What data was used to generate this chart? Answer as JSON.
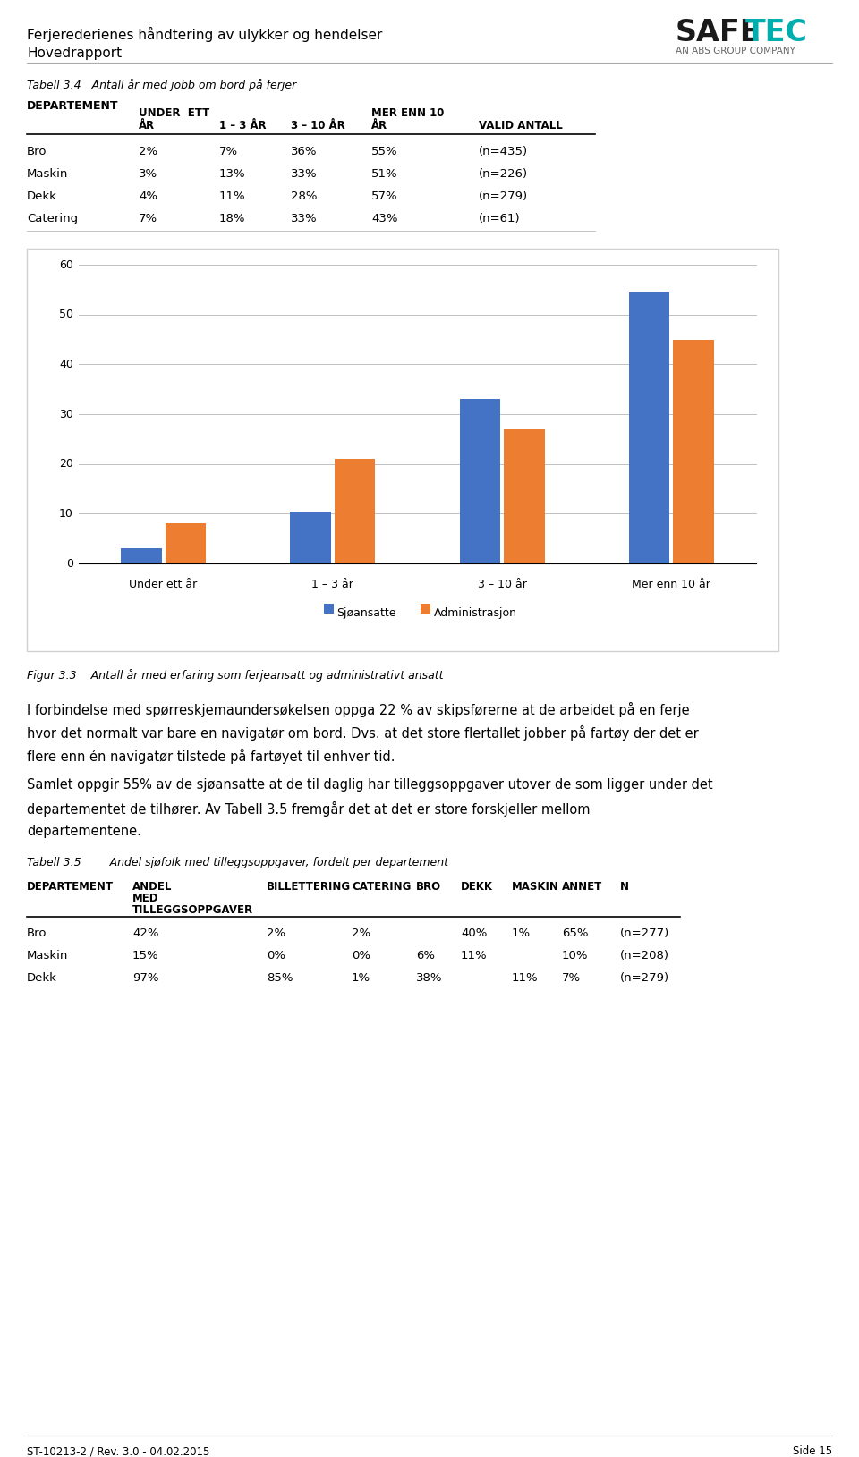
{
  "title_line1": "Ferjerederienes håndtering av ulykker og hendelser",
  "title_line2": "Hovedrapport",
  "safetec_sub": "AN ABS GROUP COMPANY",
  "table_title": "Tabell 3.4   Antall år med jobb om bord på ferjer",
  "table_rows": [
    [
      "Bro",
      "2%",
      "7%",
      "36%",
      "55%",
      "(n=435)"
    ],
    [
      "Maskin",
      "3%",
      "13%",
      "33%",
      "51%",
      "(n=226)"
    ],
    [
      "Dekk",
      "4%",
      "11%",
      "28%",
      "57%",
      "(n=279)"
    ],
    [
      "Catering",
      "7%",
      "18%",
      "33%",
      "43%",
      "(n=61)"
    ]
  ],
  "chart_categories": [
    "Under ett år",
    "1 – 3 år",
    "3 – 10 år",
    "Mer enn 10 år"
  ],
  "sjøansatte_values": [
    3,
    10.5,
    33,
    54.5
  ],
  "administrasjon_values": [
    8,
    21,
    27,
    45
  ],
  "sjøansatte_color": "#4472C4",
  "administrasjon_color": "#ED7D31",
  "chart_ylim": [
    0,
    60
  ],
  "chart_yticks": [
    0,
    10,
    20,
    30,
    40,
    50,
    60
  ],
  "legend_labels": [
    "Sjøansatte",
    "Administrasjon"
  ],
  "figur_caption": "Figur 3.3    Antall år med erfaring som ferjeansatt og administrativt ansatt",
  "body_text1_lines": [
    "I forbindelse med spørreskjemaundersøkelsen oppga 22 % av skipsførerne at de arbeidet på en ferje",
    "hvor det normalt var bare en navigatør om bord. Dvs. at det store flertallet jobber på fartøy der det er",
    "flere enn én navigatør tilstede på fartøyet til enhver tid."
  ],
  "body_text2_lines": [
    "Samlet oppgir 55% av de sjøansatte at de til daglig har tilleggsoppgaver utover de som ligger under det",
    "departementet de tilhører. Av Tabell 3.5 fremgår det at det er store forskjeller mellom",
    "departementene."
  ],
  "table2_title": "Tabell 3.5        Andel sjøfolk med tilleggsoppgaver, fordelt per departement",
  "table2_rows": [
    [
      "Bro",
      "42%",
      "2%",
      "2%",
      "",
      "40%",
      "1%",
      "65%",
      "(n=277)"
    ],
    [
      "Maskin",
      "15%",
      "0%",
      "0%",
      "6%",
      "11%",
      "",
      "10%",
      "(n=208)"
    ],
    [
      "Dekk",
      "97%",
      "85%",
      "1%",
      "38%",
      "",
      "11%",
      "7%",
      "(n=279)"
    ]
  ],
  "footer_left": "ST-10213-2 / Rev. 3.0 - 04.02.2015",
  "footer_right": "Side 15",
  "bg_color": "#ffffff",
  "grid_color": "#c0c0c0",
  "chart_border_color": "#d0d0d0"
}
